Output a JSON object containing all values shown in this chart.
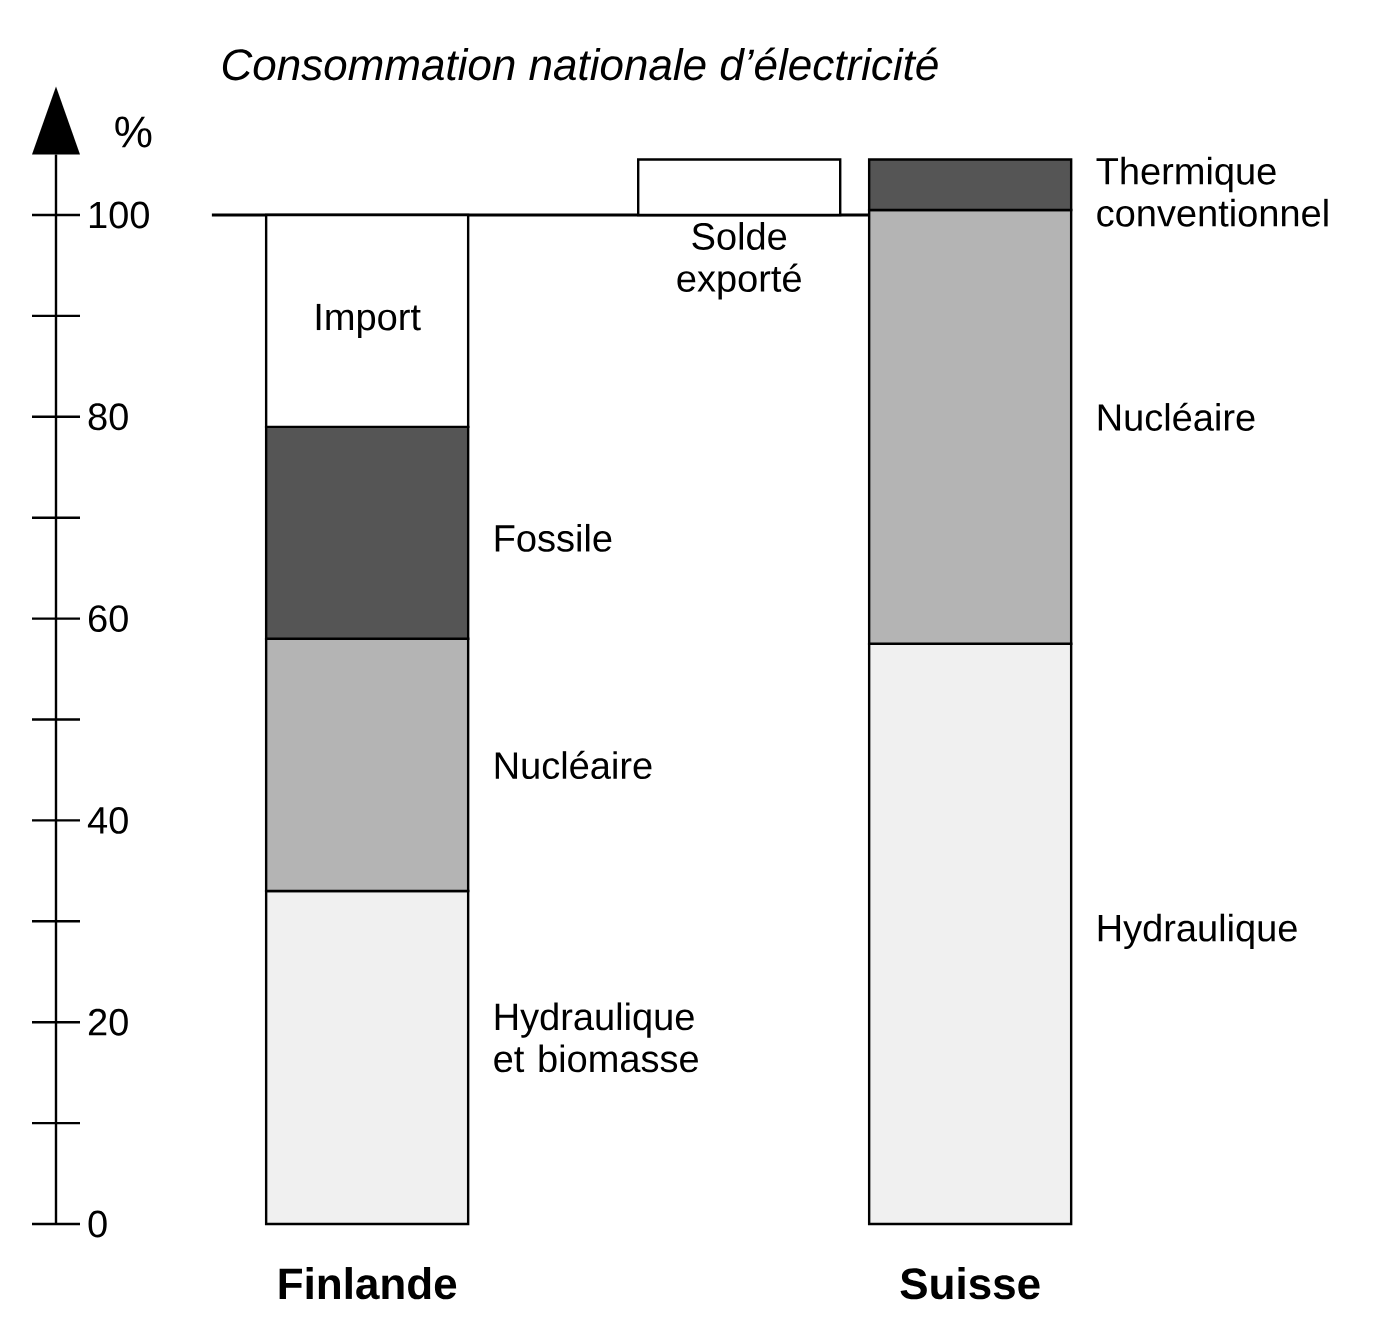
{
  "chart_data": {
    "type": "bar",
    "title": "Consommation nationale d’électricité",
    "ylabel": "%",
    "categories": [
      "Finlande",
      "Suisse"
    ],
    "series": [
      {
        "color": "#f0f0f0",
        "values": [
          33,
          57.5
        ],
        "base": [
          0,
          0
        ]
      },
      {
        "color": "#b4b4b4",
        "values": [
          25,
          43
        ],
        "base": [
          33,
          57.5
        ]
      },
      {
        "color": "#555555",
        "values": [
          21,
          5
        ],
        "base": [
          58,
          100.5
        ]
      },
      {
        "name": "Import",
        "color": "#ffffff",
        "values": [
          21,
          null
        ],
        "base": [
          79,
          null
        ]
      },
      {
        "name": "Solde exporté",
        "color": "#ffffff",
        "values": [
          null,
          5.5
        ],
        "base": [
          null,
          100
        ]
      }
    ],
    "ylim": [
      0,
      106
    ],
    "yticks": [
      0,
      20,
      40,
      60,
      80,
      100
    ],
    "ref_lines": [
      {
        "axis": "y",
        "value": 100,
        "color": "#000000"
      }
    ],
    "annotations": [
      "Fossile",
      "Nucléaire",
      "Hydraulique et biomasse",
      "Thermique conventionnel",
      "Nucléaire",
      "Hydraulique"
    ]
  }
}
